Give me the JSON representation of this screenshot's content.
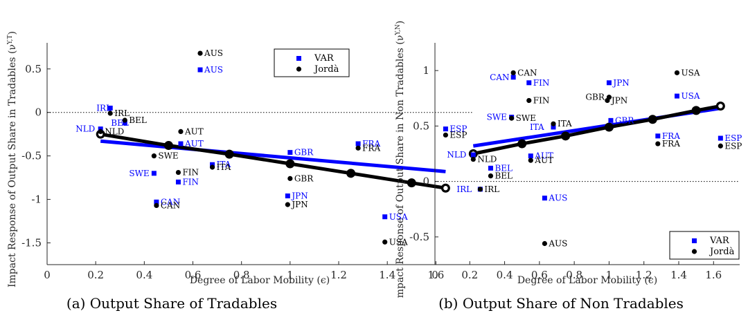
{
  "colors": {
    "var": "#0000ff",
    "jorda": "#000000",
    "axis": "#262626"
  },
  "panels": [
    {
      "caption": "(a)  Output Share of Tradables",
      "ylabel": "Impact Response of Output Share in Tradables (ν^{Y,T})",
      "xlabel": "Degree of Labor Mobility (ϵ)",
      "legend": {
        "position": "top-right",
        "labels": [
          "VAR",
          "Jordà"
        ]
      }
    },
    {
      "caption": "(b)  Output Share of Non Tradables",
      "ylabel": "mpact Response of Output Share in Non Tradables (ν^{Y,N})",
      "xlabel": "Degree of Labor Mobility (ϵ)",
      "legend": {
        "position": "bottom-right",
        "labels": [
          "VAR",
          "Jordà"
        ]
      }
    }
  ],
  "chart_data": [
    {
      "type": "scatter",
      "xlabel": "Degree of Labor Mobility (ϵ)",
      "ylabel": "Impact Response of Output Share in Tradables (ν^{Y,T})",
      "xlim": [
        0,
        1.75
      ],
      "ylim": [
        -1.75,
        0.8
      ],
      "xticks": [
        0,
        0.2,
        0.4,
        0.6,
        0.8,
        1,
        1.2,
        1.4,
        1.6
      ],
      "xtick_labels": [
        "0",
        "0.2",
        "0.4",
        "0.6",
        "0.8",
        "1",
        "1.2",
        "1.4",
        "1.6"
      ],
      "yticks": [
        -1.5,
        -1,
        -0.5,
        0,
        0.5
      ],
      "ytick_labels": [
        "-1.5",
        "-1",
        "-0.5",
        "0",
        "0.5"
      ],
      "reference_line_y": 0,
      "series": [
        {
          "name": "VAR",
          "marker": "square",
          "points": [
            {
              "label": "AUS",
              "x": 0.63,
              "y": 0.49
            },
            {
              "label": "IRL",
              "x": 0.26,
              "y": 0.05
            },
            {
              "label": "BEL",
              "x": 0.32,
              "y": -0.12
            },
            {
              "label": "NLD",
              "x": 0.22,
              "y": -0.19
            },
            {
              "label": "AUT",
              "x": 0.55,
              "y": -0.36
            },
            {
              "label": "SWE",
              "x": 0.44,
              "y": -0.7
            },
            {
              "label": "FIN",
              "x": 0.54,
              "y": -0.8
            },
            {
              "label": "ITA",
              "x": 0.68,
              "y": -0.6
            },
            {
              "label": "GBR",
              "x": 1.0,
              "y": -0.46
            },
            {
              "label": "FRA",
              "x": 1.28,
              "y": -0.36
            },
            {
              "label": "ESP",
              "x": 1.64,
              "y": -0.19
            },
            {
              "label": "CAN",
              "x": 0.45,
              "y": -1.03
            },
            {
              "label": "JPN",
              "x": 0.99,
              "y": -0.96
            },
            {
              "label": "USA",
              "x": 1.39,
              "y": -1.2
            }
          ]
        },
        {
          "name": "Jordà",
          "marker": "circle",
          "points": [
            {
              "label": "AUS",
              "x": 0.63,
              "y": 0.68
            },
            {
              "label": "IRL",
              "x": 0.26,
              "y": -0.01
            },
            {
              "label": "BEL",
              "x": 0.32,
              "y": -0.09
            },
            {
              "label": "NLD",
              "x": 0.22,
              "y": -0.22
            },
            {
              "label": "AUT",
              "x": 0.55,
              "y": -0.22
            },
            {
              "label": "SWE",
              "x": 0.44,
              "y": -0.5
            },
            {
              "label": "FIN",
              "x": 0.54,
              "y": -0.69
            },
            {
              "label": "ITA",
              "x": 0.68,
              "y": -0.63
            },
            {
              "label": "GBR",
              "x": 1.0,
              "y": -0.76
            },
            {
              "label": "FRA",
              "x": 1.28,
              "y": -0.41
            },
            {
              "label": "ESP",
              "x": 1.64,
              "y": -0.26
            },
            {
              "label": "CAN",
              "x": 0.45,
              "y": -1.07
            },
            {
              "label": "JPN",
              "x": 0.99,
              "y": -1.06
            },
            {
              "label": "USA",
              "x": 1.39,
              "y": -1.49
            }
          ]
        }
      ],
      "fit_lines": [
        {
          "series": "VAR",
          "x": [
            0.22,
            1.64
          ],
          "y": [
            -0.33,
            -0.68
          ]
        },
        {
          "series": "Jordà",
          "x": [
            0.22,
            0.5,
            0.75,
            1.0,
            1.25,
            1.5,
            1.64
          ],
          "y": [
            -0.25,
            -0.38,
            -0.48,
            -0.59,
            -0.7,
            -0.81,
            -0.87
          ]
        }
      ]
    },
    {
      "type": "scatter",
      "xlabel": "Degree of Labor Mobility (ϵ)",
      "ylabel": "mpact Response of Output Share in Non Tradables (ν^{Y,N})",
      "xlim": [
        0,
        1.75
      ],
      "ylim": [
        -0.75,
        1.25
      ],
      "xticks": [
        0,
        0.2,
        0.4,
        0.6,
        0.8,
        1,
        1.2,
        1.4,
        1.6
      ],
      "xtick_labels": [
        "0",
        "0.2",
        "0.4",
        "0.6",
        "0.8",
        "1",
        "1.2",
        "1.4",
        "1.6"
      ],
      "yticks": [
        -0.5,
        0,
        0.5,
        1
      ],
      "ytick_labels": [
        "-0.5",
        "0",
        "0.5",
        "1"
      ],
      "reference_line_y": 0,
      "series": [
        {
          "name": "VAR",
          "marker": "square",
          "points": [
            {
              "label": "CAN",
              "x": 0.45,
              "y": 0.94
            },
            {
              "label": "FIN",
              "x": 0.54,
              "y": 0.89
            },
            {
              "label": "JPN",
              "x": 1.0,
              "y": 0.89
            },
            {
              "label": "USA",
              "x": 1.39,
              "y": 0.77
            },
            {
              "label": "SWE",
              "x": 0.44,
              "y": 0.58
            },
            {
              "label": "GBR",
              "x": 1.01,
              "y": 0.55
            },
            {
              "label": "ITA",
              "x": 0.68,
              "y": 0.49
            },
            {
              "label": "FRA",
              "x": 1.28,
              "y": 0.41
            },
            {
              "label": "ESP",
              "x": 1.64,
              "y": 0.39
            },
            {
              "label": "NLD",
              "x": 0.22,
              "y": 0.24
            },
            {
              "label": "AUT",
              "x": 0.55,
              "y": 0.23
            },
            {
              "label": "BEL",
              "x": 0.32,
              "y": 0.12
            },
            {
              "label": "IRL",
              "x": 0.26,
              "y": -0.07
            },
            {
              "label": "AUS",
              "x": 0.63,
              "y": -0.15
            }
          ]
        },
        {
          "name": "Jordà",
          "marker": "circle",
          "points": [
            {
              "label": "CAN",
              "x": 0.45,
              "y": 0.98
            },
            {
              "label": "FIN",
              "x": 0.54,
              "y": 0.73
            },
            {
              "label": "GBR",
              "x": 1.0,
              "y": 0.76
            },
            {
              "label": "JPN",
              "x": 0.99,
              "y": 0.73
            },
            {
              "label": "USA",
              "x": 1.39,
              "y": 0.98
            },
            {
              "label": "SWE",
              "x": 0.44,
              "y": 0.57
            },
            {
              "label": "ITA",
              "x": 0.68,
              "y": 0.52
            },
            {
              "label": "FRA",
              "x": 1.28,
              "y": 0.34
            },
            {
              "label": "ESP",
              "x": 1.64,
              "y": 0.32
            },
            {
              "label": "NLD",
              "x": 0.22,
              "y": 0.2
            },
            {
              "label": "AUT",
              "x": 0.55,
              "y": 0.19
            },
            {
              "label": "BEL",
              "x": 0.32,
              "y": 0.05
            },
            {
              "label": "IRL",
              "x": 0.26,
              "y": -0.07
            },
            {
              "label": "AUS",
              "x": 0.63,
              "y": -0.56
            }
          ]
        }
      ],
      "fit_lines": [
        {
          "series": "VAR",
          "x": [
            0.22,
            1.64
          ],
          "y": [
            0.32,
            0.66
          ]
        },
        {
          "series": "Jordà",
          "x": [
            0.22,
            0.5,
            0.75,
            1.0,
            1.25,
            1.5,
            1.64
          ],
          "y": [
            0.25,
            0.34,
            0.41,
            0.49,
            0.56,
            0.64,
            0.68
          ]
        }
      ]
    }
  ]
}
